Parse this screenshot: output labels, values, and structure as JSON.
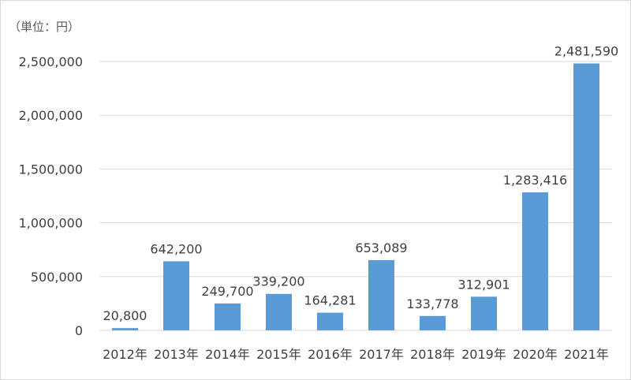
{
  "chart_data": {
    "type": "bar",
    "unit_label": "（単位：円）",
    "categories": [
      "2012年",
      "2013年",
      "2014年",
      "2015年",
      "2016年",
      "2017年",
      "2018年",
      "2019年",
      "2020年",
      "2021年"
    ],
    "values": [
      20800,
      642200,
      249700,
      339200,
      164281,
      653089,
      133778,
      312901,
      1283416,
      2481590
    ],
    "data_labels": [
      "20,800",
      "642,200",
      "249,700",
      "339,200",
      "164,281",
      "653,089",
      "133,778",
      "312,901",
      "1,283,416",
      "2,481,590"
    ],
    "y_ticks": [
      0,
      500000,
      1000000,
      1500000,
      2000000,
      2500000
    ],
    "y_tick_labels": [
      "0",
      "500,000",
      "1,000,000",
      "1,500,000",
      "2,000,000",
      "2,500,000"
    ],
    "ylim": [
      0,
      2500000
    ],
    "grid": true,
    "legend": false,
    "colors": {
      "bar": "#5b9bd5",
      "grid": "#d9d9d9",
      "text": "#404040"
    }
  }
}
